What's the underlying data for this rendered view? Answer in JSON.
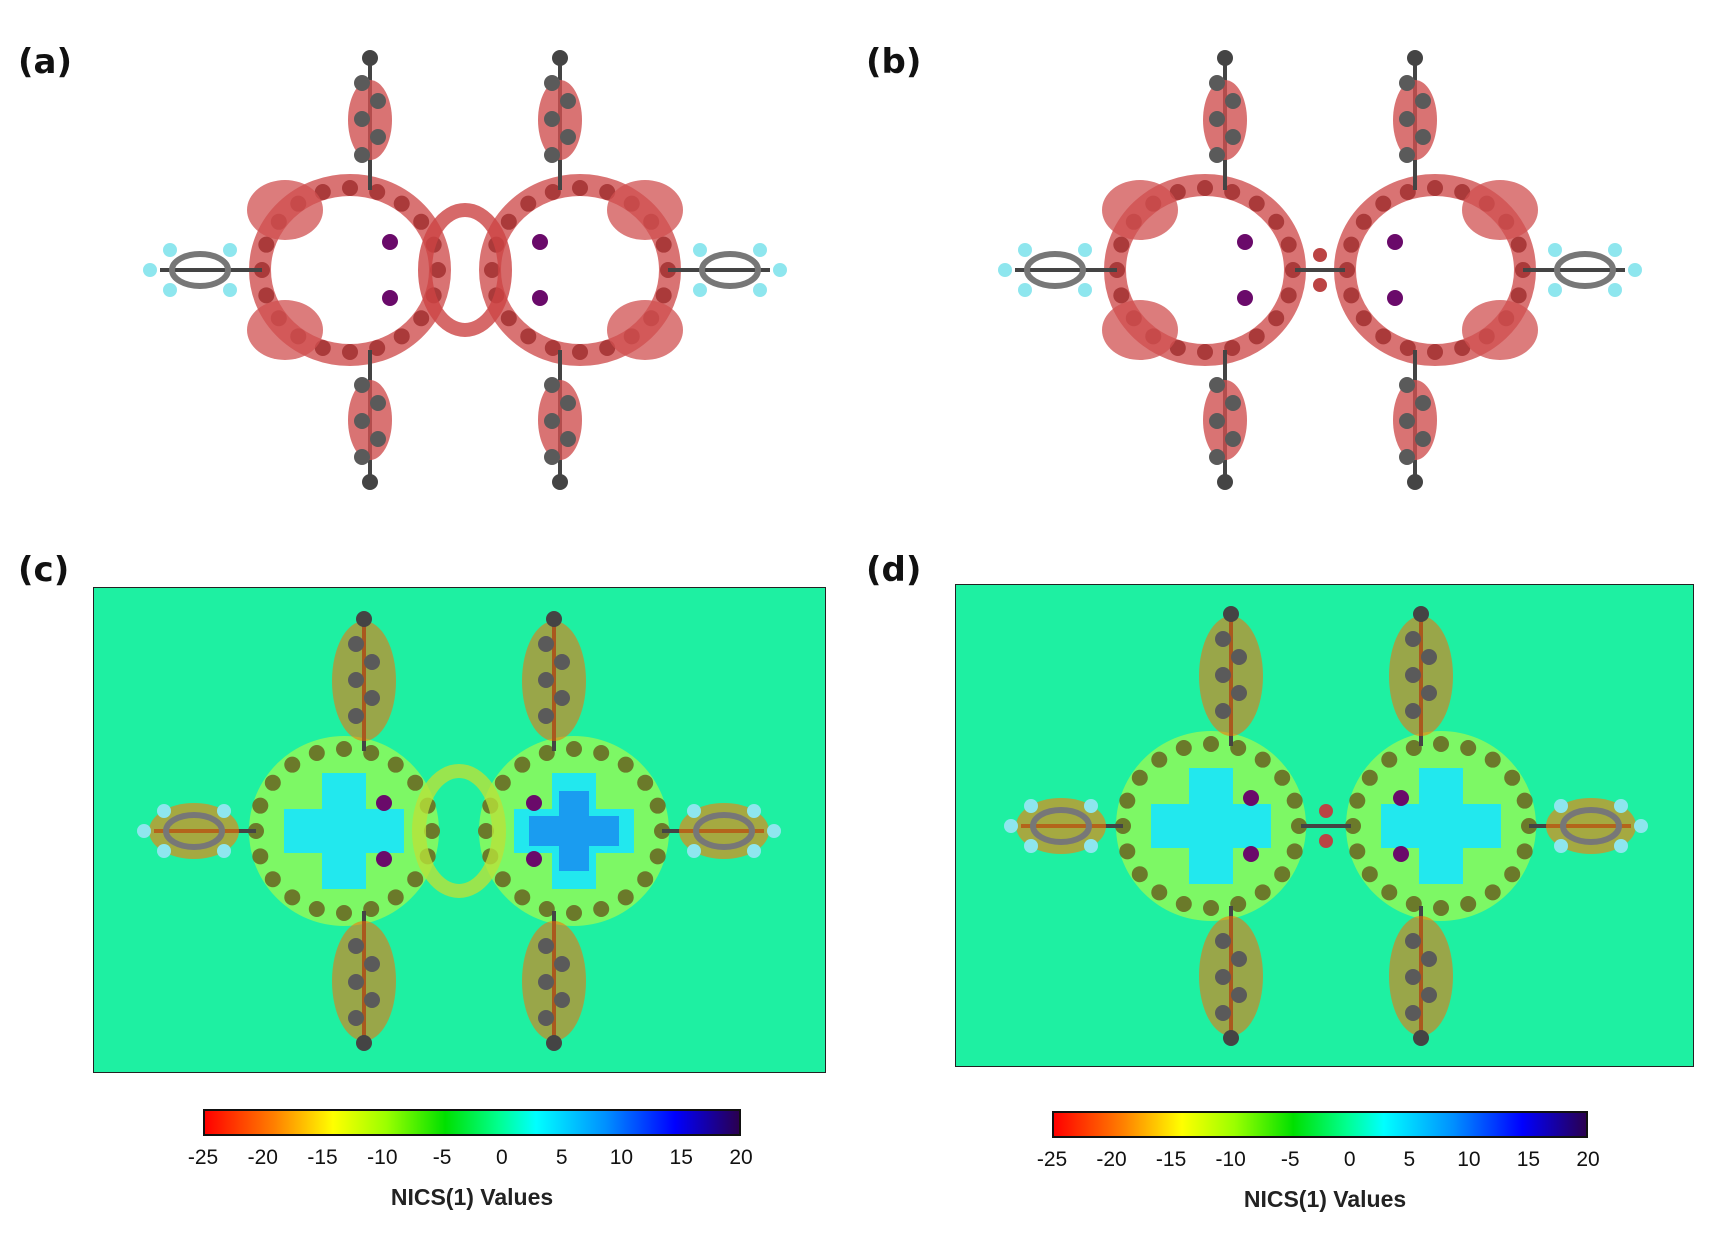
{
  "panels": [
    {
      "label": "(a)",
      "type": "molecular-orbital-isosurface"
    },
    {
      "label": "(b)",
      "type": "molecular-orbital-isosurface"
    },
    {
      "label": "(c)",
      "type": "nics-map"
    },
    {
      "label": "(d)",
      "type": "nics-map"
    }
  ],
  "colorbar": {
    "title": "NICS(1) Values",
    "ticks": [
      "-25",
      "-20",
      "-15",
      "-10",
      "-5",
      "0",
      "5",
      "10",
      "15",
      "20"
    ],
    "range": [
      -25,
      20
    ],
    "colors": [
      "#ff0000",
      "#ffff00",
      "#00e000",
      "#00ffff",
      "#0000ff",
      "#2a0050"
    ]
  },
  "colors": {
    "isosurface": "#d9534f",
    "carbon": "#555555",
    "fluorine": "#8ee6ee",
    "nitrogen": "#6a0a6a",
    "map_background": "#1ef0a2"
  }
}
